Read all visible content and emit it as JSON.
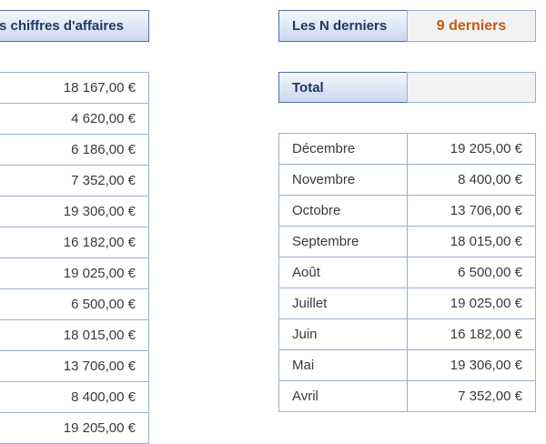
{
  "left_header": {
    "label": "s chiffres d'affaires"
  },
  "left_values": [
    "18 167,00 €",
    "4 620,00 €",
    "6 186,00 €",
    "7 352,00 €",
    "19 306,00 €",
    "16 182,00 €",
    "19 025,00 €",
    "6 500,00 €",
    "18 015,00 €",
    "13 706,00 €",
    "8 400,00 €",
    "19 205,00 €"
  ],
  "n_derniers": {
    "label": "Les N derniers",
    "value": "9 derniers",
    "value_color": "#c55a11"
  },
  "total": {
    "label": "Total",
    "value": ""
  },
  "right_rows": [
    {
      "month": "Décembre",
      "amount": "19 205,00 €"
    },
    {
      "month": "Novembre",
      "amount": "8 400,00 €"
    },
    {
      "month": "Octobre",
      "amount": "13 706,00 €"
    },
    {
      "month": "Septembre",
      "amount": "18 015,00 €"
    },
    {
      "month": "Août",
      "amount": "6 500,00 €"
    },
    {
      "month": "Juillet",
      "amount": "19 025,00 €"
    },
    {
      "month": "Juin",
      "amount": "16 182,00 €"
    },
    {
      "month": "Mai",
      "amount": "19 306,00 €"
    },
    {
      "month": "Avril",
      "amount": "7 352,00 €"
    }
  ]
}
